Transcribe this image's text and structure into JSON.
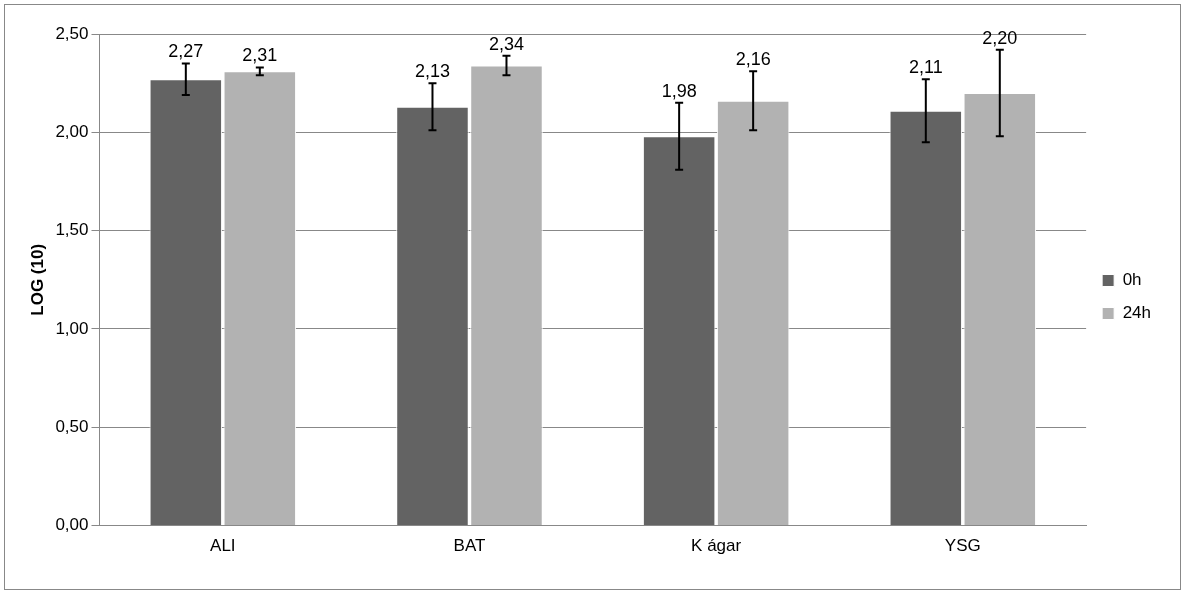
{
  "chart_data": {
    "type": "bar",
    "ylabel": "LOG (10)",
    "categories": [
      "ALI",
      "BAT",
      "K ágar",
      "YSG"
    ],
    "series": [
      {
        "name": "0h",
        "color": "#636363",
        "values": [
          2.27,
          2.13,
          1.98,
          2.11
        ],
        "errors": [
          0.08,
          0.12,
          0.17,
          0.16
        ],
        "value_labels": [
          "2,27",
          "2,13",
          "1,98",
          "2,11"
        ]
      },
      {
        "name": "24h",
        "color": "#b2b2b2",
        "values": [
          2.31,
          2.34,
          2.16,
          2.2
        ],
        "errors": [
          0.02,
          0.05,
          0.15,
          0.22
        ],
        "value_labels": [
          "2,31",
          "2,34",
          "2,16",
          "2,20"
        ]
      }
    ],
    "ylim": [
      0,
      2.5
    ],
    "yticks": [
      {
        "value": 0,
        "label": "0,00"
      },
      {
        "value": 0.5,
        "label": "0,50"
      },
      {
        "value": 1,
        "label": "1,00"
      },
      {
        "value": 1.5,
        "label": "1,50"
      },
      {
        "value": 2,
        "label": "2,00"
      },
      {
        "value": 2.5,
        "label": "2,50"
      }
    ],
    "grid": "y",
    "legend": "right"
  }
}
